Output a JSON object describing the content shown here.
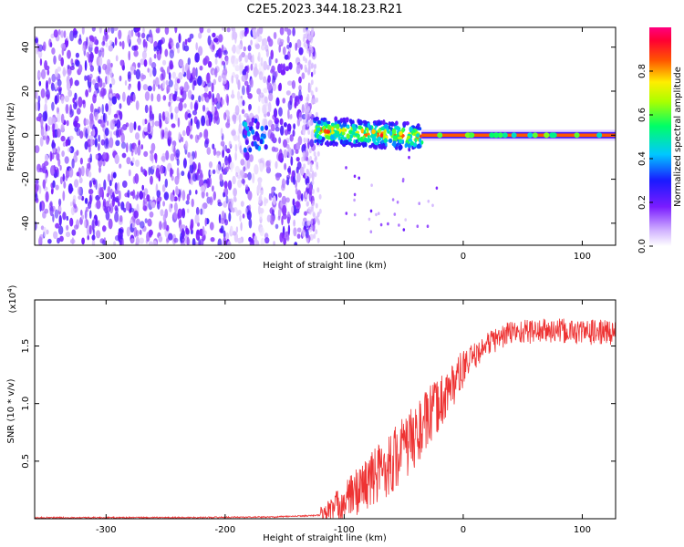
{
  "title": "C2E5.2023.344.18.23.R21",
  "chart_data": [
    {
      "type": "heatmap",
      "xlabel": "Height of straight line (km)",
      "ylabel": "Frequency (Hz)",
      "xlim": [
        -360,
        128
      ],
      "ylim": [
        -50,
        49
      ],
      "xticks": [
        -300,
        -200,
        -100,
        0,
        100
      ],
      "yticks": [
        -40,
        -20,
        0,
        20,
        40
      ],
      "xtick_labels": [
        "-300",
        "-200",
        "-100",
        "0",
        "100"
      ],
      "ytick_labels": [
        "-40",
        "-20",
        "0",
        "20",
        "40"
      ],
      "colorbar": {
        "label": "Normalized spectral amplitude",
        "range": [
          0,
          1
        ],
        "ticks": [
          0.0,
          0.2,
          0.4,
          0.6,
          0.8
        ],
        "tick_labels": [
          "0.0",
          "0.2",
          "0.4",
          "0.6",
          "0.8"
        ],
        "colormap": [
          "#ffffff",
          "#c9a0ff",
          "#6a00ff",
          "#1a1aff",
          "#00ffff",
          "#00ff00",
          "#ffff00",
          "#ff6600",
          "#ff0000",
          "#ff0080"
        ]
      },
      "regions": [
        {
          "name": "broadband noise",
          "x_range": [
            -360,
            -125
          ],
          "freq_range": [
            -50,
            49
          ],
          "amplitude": 0.15
        },
        {
          "name": "gap band 1",
          "x_range": [
            -195,
            -185
          ],
          "amplitude": 0.03
        },
        {
          "name": "gap band 2",
          "x_range": [
            -175,
            -165
          ],
          "amplitude": 0.04
        },
        {
          "name": "signal onset blob",
          "x_range": [
            -185,
            -165
          ],
          "freq_center": 0,
          "amplitude": 0.3
        },
        {
          "name": "scattered signal",
          "x_range": [
            -125,
            -35
          ],
          "freq_center": 2,
          "freq_spread": 6,
          "amplitude": 0.5
        },
        {
          "name": "carrier line",
          "x_range": [
            -35,
            128
          ],
          "freq_center": 0,
          "amplitude": 0.85
        }
      ]
    },
    {
      "type": "line",
      "xlabel": "Height of straight line (km)",
      "ylabel": "SNR (10 * v/v)",
      "y_multiplier_label": "(x10",
      "y_multiplier_exp": "4",
      "y_multiplier_close": ")",
      "xlim": [
        -360,
        128
      ],
      "ylim": [
        0,
        1.9
      ],
      "xticks": [
        -300,
        -200,
        -100,
        0,
        100
      ],
      "yticks": [
        0.5,
        1.0,
        1.5
      ],
      "xtick_labels": [
        "-300",
        "-200",
        "-100",
        "0",
        "100"
      ],
      "ytick_labels": [
        "0.5",
        "1.0",
        "1.5"
      ],
      "series": [
        {
          "name": "SNR",
          "color": "#ee3333",
          "envelope": [
            {
              "x": -360,
              "y": 0.01
            },
            {
              "x": -250,
              "y": 0.01
            },
            {
              "x": -160,
              "y": 0.015
            },
            {
              "x": -120,
              "y": 0.03
            },
            {
              "x": -100,
              "y": 0.15
            },
            {
              "x": -80,
              "y": 0.32
            },
            {
              "x": -60,
              "y": 0.5
            },
            {
              "x": -40,
              "y": 0.72
            },
            {
              "x": -20,
              "y": 1.0
            },
            {
              "x": 0,
              "y": 1.3
            },
            {
              "x": 20,
              "y": 1.52
            },
            {
              "x": 40,
              "y": 1.62
            },
            {
              "x": 60,
              "y": 1.63
            },
            {
              "x": 80,
              "y": 1.63
            },
            {
              "x": 100,
              "y": 1.62
            },
            {
              "x": 128,
              "y": 1.62
            }
          ]
        }
      ]
    }
  ]
}
